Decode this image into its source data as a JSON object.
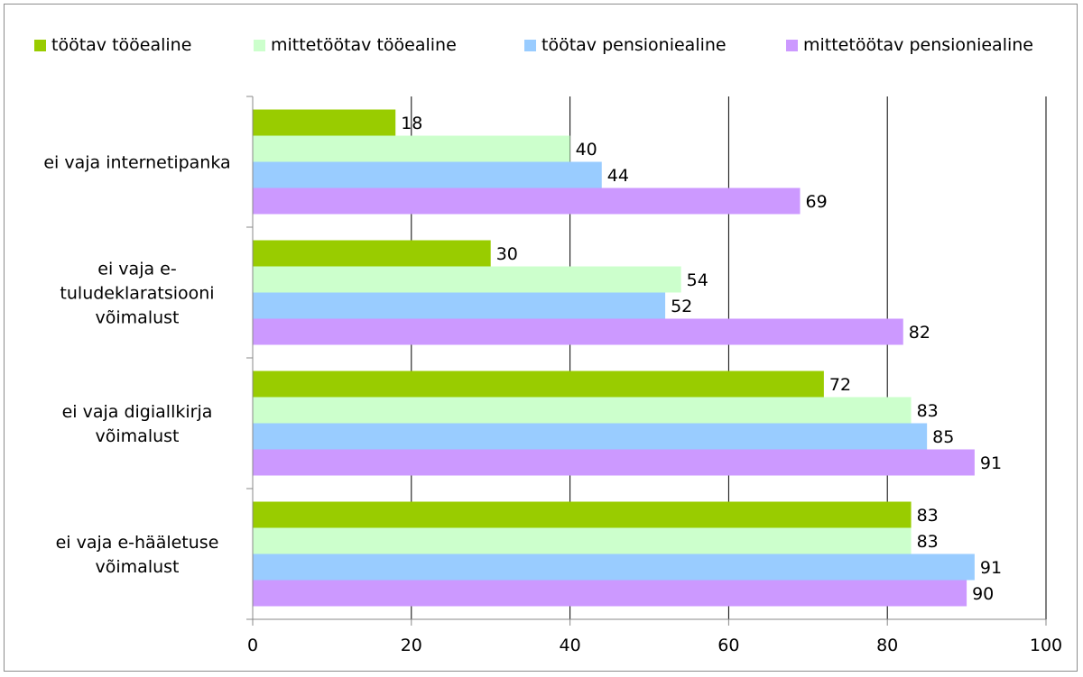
{
  "chart_data": {
    "type": "bar",
    "orientation": "horizontal",
    "title": "",
    "xlabel": "",
    "ylabel": "",
    "xlim": [
      0,
      100
    ],
    "x_ticks": [
      0,
      20,
      40,
      60,
      80,
      100
    ],
    "grid": true,
    "legend_position": "top",
    "categories": [
      [
        "ei vaja internetipanka"
      ],
      [
        "ei vaja e-",
        "tuludeklaratsiooni",
        "võimalust"
      ],
      [
        "ei vaja digiallkirja",
        "võimalust"
      ],
      [
        "ei vaja e-hääletuse",
        "võimalust"
      ]
    ],
    "series": [
      {
        "name": "töötav tööealine",
        "color": "#99cc00",
        "values": [
          18,
          30,
          72,
          83
        ]
      },
      {
        "name": "mittetöötav tööealine",
        "color": "#ccffcc",
        "values": [
          40,
          54,
          83,
          83
        ]
      },
      {
        "name": "töötav pensioniealine",
        "color": "#99ccff",
        "values": [
          44,
          52,
          85,
          91
        ]
      },
      {
        "name": "mittetöötav pensioniealine",
        "color": "#cc99ff",
        "values": [
          69,
          82,
          91,
          90
        ]
      }
    ]
  }
}
